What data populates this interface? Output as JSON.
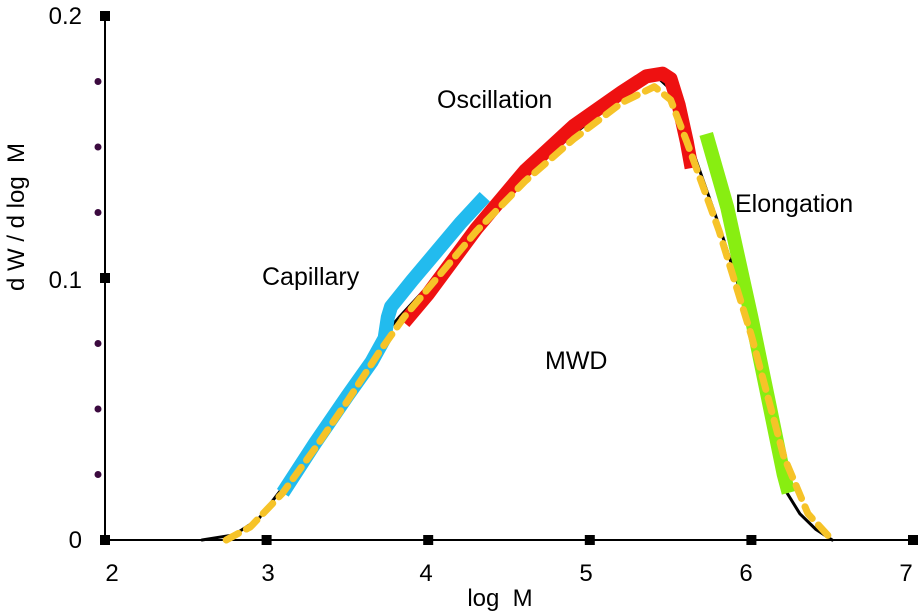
{
  "chart_data": {
    "type": "line",
    "xlabel": "log  M",
    "ylabel": "d W / d log  M",
    "xlim": [
      2,
      7
    ],
    "ylim": [
      0,
      0.2
    ],
    "x_ticks": [
      "2",
      "3",
      "4",
      "5",
      "6",
      "7"
    ],
    "y_ticks": [
      "0",
      "0.1",
      "0.2"
    ],
    "grid": false,
    "legend": "none",
    "annotations": {
      "capillary": "Capillary",
      "oscillation": "Oscillation",
      "elongation": "Elongation",
      "mwd": "MWD"
    },
    "series": [
      {
        "style": "solid-thin",
        "color": "#000000",
        "x": [
          2.6,
          2.8,
          2.95,
          3.1,
          3.3,
          3.5,
          3.65,
          3.75,
          3.82,
          4.0,
          4.3,
          4.6,
          4.9,
          5.2,
          5.35,
          5.43,
          5.5,
          5.6,
          5.8,
          6.0,
          6.2,
          6.3,
          6.4,
          6.5
        ],
        "y": [
          0.0,
          0.002,
          0.008,
          0.02,
          0.035,
          0.052,
          0.067,
          0.08,
          0.085,
          0.097,
          0.119,
          0.139,
          0.155,
          0.169,
          0.175,
          0.176,
          0.172,
          0.155,
          0.12,
          0.082,
          0.02,
          0.01,
          0.004,
          0.0
        ]
      },
      {
        "style": "dashed",
        "color": "#F6C328",
        "x": [
          2.75,
          2.9,
          3.1,
          3.3,
          3.5,
          3.7,
          3.85,
          4.0,
          4.3,
          4.6,
          4.9,
          5.2,
          5.4,
          5.5,
          5.6,
          5.8,
          6.0,
          6.2,
          6.35,
          6.5
        ],
        "y": [
          0.0,
          0.005,
          0.018,
          0.035,
          0.053,
          0.072,
          0.085,
          0.096,
          0.118,
          0.137,
          0.153,
          0.167,
          0.173,
          0.168,
          0.152,
          0.118,
          0.078,
          0.032,
          0.01,
          0.0
        ]
      },
      {
        "style": "thick",
        "color": "#22BBEE",
        "x": [
          3.1,
          3.3,
          3.5,
          3.65,
          3.73,
          3.75,
          3.77,
          3.9,
          4.05,
          4.2,
          4.35
        ],
        "y": [
          0.018,
          0.037,
          0.055,
          0.068,
          0.077,
          0.085,
          0.089,
          0.099,
          0.11,
          0.121,
          0.131
        ]
      },
      {
        "style": "thick",
        "color": "#EE1111",
        "x": [
          3.85,
          4.0,
          4.3,
          4.6,
          4.9,
          5.2,
          5.35,
          5.45,
          5.5,
          5.55,
          5.6,
          5.63
        ],
        "y": [
          0.083,
          0.094,
          0.119,
          0.141,
          0.158,
          0.171,
          0.177,
          0.178,
          0.176,
          0.166,
          0.152,
          0.142
        ]
      },
      {
        "style": "thick",
        "color": "#88EE11",
        "x": [
          5.72,
          5.85,
          6.0,
          6.1,
          6.2,
          6.23
        ],
        "y": [
          0.155,
          0.127,
          0.085,
          0.055,
          0.025,
          0.018
        ]
      }
    ]
  }
}
